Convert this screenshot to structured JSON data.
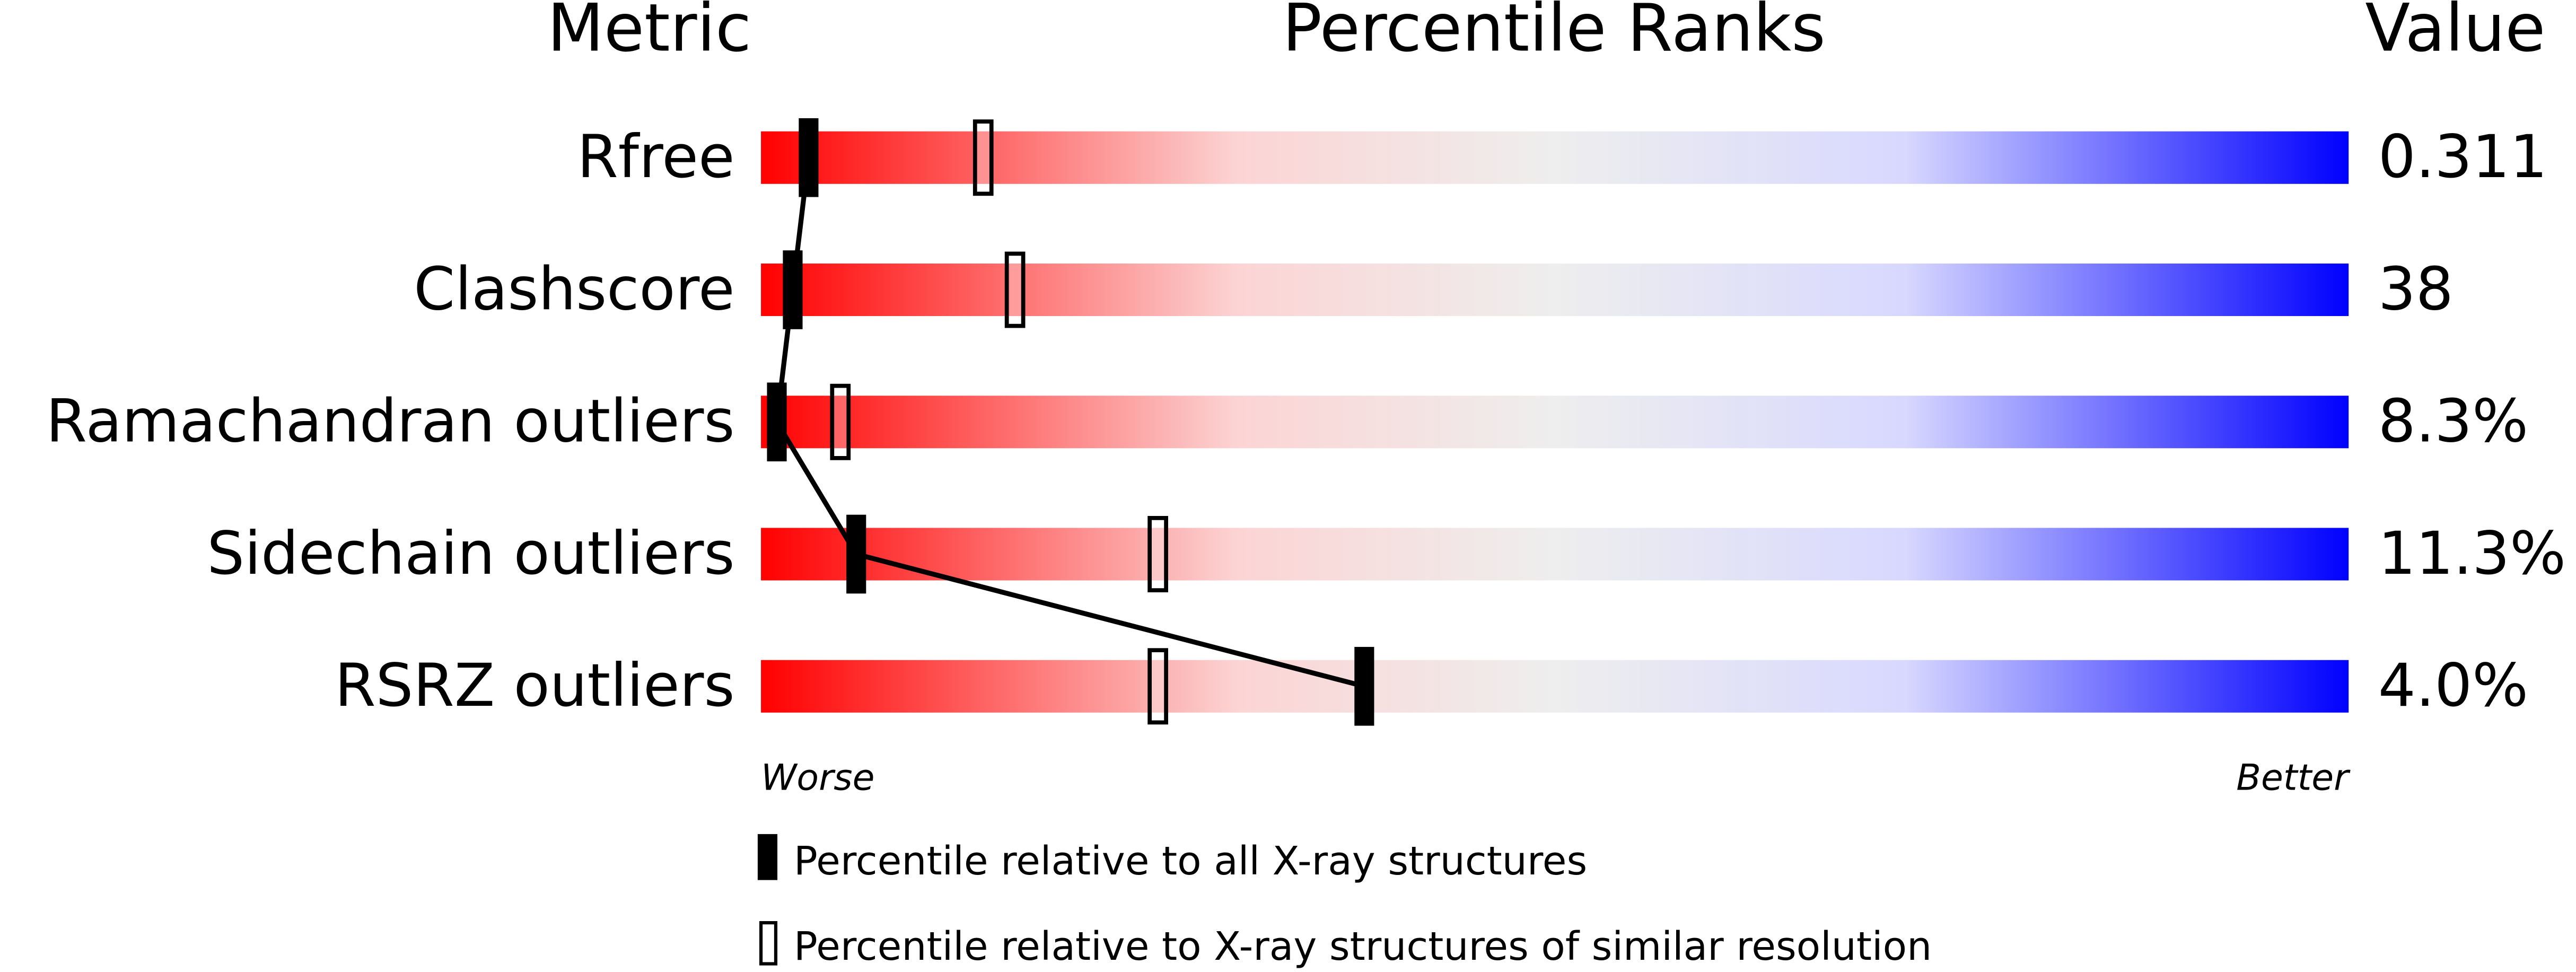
{
  "chart_data": {
    "type": "percentile",
    "headers": [
      "Metric",
      "Percentile Ranks",
      "Value"
    ],
    "categories": [
      "Rfree",
      "Clashscore",
      "Ramachandran outliers",
      "Sidechain outliers",
      "RSRZ outliers"
    ],
    "values": [
      "0.311",
      "38",
      "8.3%",
      "11.3%",
      "4.0%"
    ],
    "series": [
      {
        "name": "Percentile relative to all X-ray structures",
        "color": "#000000",
        "values": [
          3,
          2,
          1,
          6,
          38
        ]
      },
      {
        "name": "Percentile relative to X-ray structures of similar resolution",
        "color": "#000000",
        "values": [
          14,
          16,
          5,
          25,
          25
        ]
      }
    ],
    "xlim": [
      0,
      100
    ],
    "axis_labels": [
      "Worse",
      "Better"
    ]
  }
}
